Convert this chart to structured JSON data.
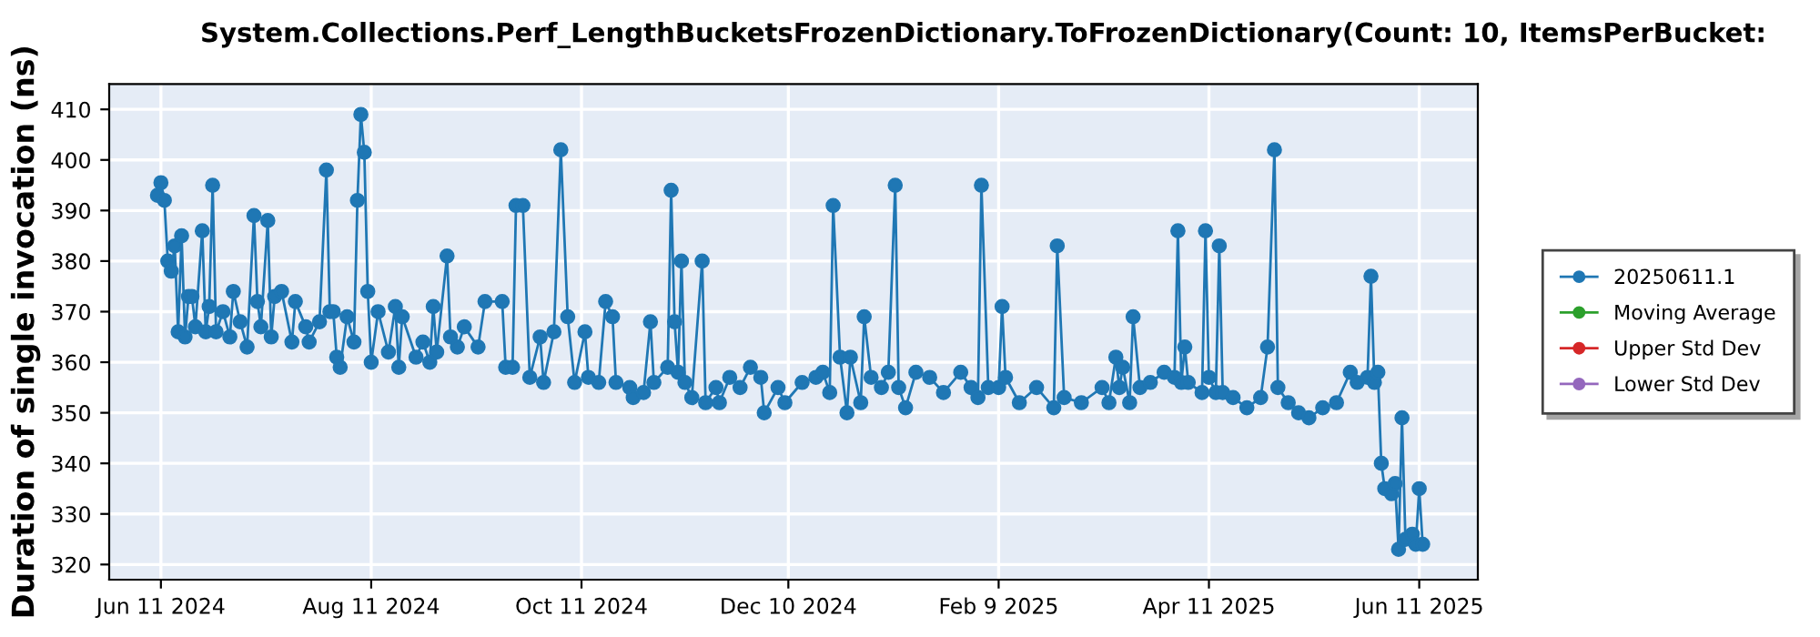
{
  "chart_data": {
    "type": "line",
    "title": "System.Collections.Perf_LengthBucketsFrozenDictionary.ToFrozenDictionary(Count: 10, ItemsPerBucket:",
    "ylabel": "Duration of single invocation (ns)",
    "xlim": [
      "2024-05-27",
      "2025-06-28"
    ],
    "ylim": [
      317,
      415
    ],
    "xticks": [
      {
        "value": "2024-06-11",
        "label": "Jun 11 2024"
      },
      {
        "value": "2024-08-11",
        "label": "Aug 11 2024"
      },
      {
        "value": "2024-10-11",
        "label": "Oct 11 2024"
      },
      {
        "value": "2024-12-10",
        "label": "Dec 10 2024"
      },
      {
        "value": "2025-02-09",
        "label": "Feb 9 2025"
      },
      {
        "value": "2025-04-11",
        "label": "Apr 11 2025"
      },
      {
        "value": "2025-06-11",
        "label": "Jun 11 2025"
      }
    ],
    "yticks": [
      320,
      330,
      340,
      350,
      360,
      370,
      380,
      390,
      400,
      410
    ],
    "grid": true,
    "legend": "right",
    "marker": "circle",
    "line_style": "solid",
    "series": [
      {
        "name": "20250611.1",
        "color": "#1f77b4",
        "x": [
          "2024-06-10",
          "2024-06-11",
          "2024-06-12",
          "2024-06-13",
          "2024-06-14",
          "2024-06-15",
          "2024-06-16",
          "2024-06-17",
          "2024-06-18",
          "2024-06-19",
          "2024-06-20",
          "2024-06-21",
          "2024-06-23",
          "2024-06-24",
          "2024-06-25",
          "2024-06-26",
          "2024-06-27",
          "2024-06-29",
          "2024-07-01",
          "2024-07-02",
          "2024-07-04",
          "2024-07-06",
          "2024-07-08",
          "2024-07-09",
          "2024-07-10",
          "2024-07-12",
          "2024-07-13",
          "2024-07-14",
          "2024-07-16",
          "2024-07-19",
          "2024-07-20",
          "2024-07-23",
          "2024-07-24",
          "2024-07-27",
          "2024-07-29",
          "2024-07-30",
          "2024-07-31",
          "2024-08-01",
          "2024-08-02",
          "2024-08-04",
          "2024-08-06",
          "2024-08-07",
          "2024-08-08",
          "2024-08-09",
          "2024-08-10",
          "2024-08-11",
          "2024-08-13",
          "2024-08-16",
          "2024-08-18",
          "2024-08-19",
          "2024-08-20",
          "2024-08-24",
          "2024-08-26",
          "2024-08-28",
          "2024-08-29",
          "2024-08-30",
          "2024-09-02",
          "2024-09-03",
          "2024-09-05",
          "2024-09-07",
          "2024-09-11",
          "2024-09-13",
          "2024-09-18",
          "2024-09-19",
          "2024-09-21",
          "2024-09-22",
          "2024-09-24",
          "2024-09-26",
          "2024-09-29",
          "2024-09-30",
          "2024-10-03",
          "2024-10-05",
          "2024-10-07",
          "2024-10-09",
          "2024-10-12",
          "2024-10-13",
          "2024-10-16",
          "2024-10-18",
          "2024-10-20",
          "2024-10-21",
          "2024-10-25",
          "2024-10-26",
          "2024-10-29",
          "2024-10-31",
          "2024-11-01",
          "2024-11-05",
          "2024-11-06",
          "2024-11-07",
          "2024-11-08",
          "2024-11-09",
          "2024-11-10",
          "2024-11-12",
          "2024-11-15",
          "2024-11-16",
          "2024-11-19",
          "2024-11-20",
          "2024-11-23",
          "2024-11-26",
          "2024-11-29",
          "2024-12-02",
          "2024-12-03",
          "2024-12-07",
          "2024-12-09",
          "2024-12-14",
          "2024-12-18",
          "2024-12-20",
          "2024-12-22",
          "2024-12-23",
          "2024-12-25",
          "2024-12-27",
          "2024-12-28",
          "2024-12-31",
          "2025-01-01",
          "2025-01-03",
          "2025-01-06",
          "2025-01-08",
          "2025-01-10",
          "2025-01-11",
          "2025-01-13",
          "2025-01-16",
          "2025-01-20",
          "2025-01-24",
          "2025-01-29",
          "2025-02-01",
          "2025-02-03",
          "2025-02-04",
          "2025-02-06",
          "2025-02-09",
          "2025-02-10",
          "2025-02-11",
          "2025-02-15",
          "2025-02-20",
          "2025-02-25",
          "2025-02-26",
          "2025-02-28",
          "2025-03-05",
          "2025-03-11",
          "2025-03-13",
          "2025-03-15",
          "2025-03-16",
          "2025-03-17",
          "2025-03-19",
          "2025-03-20",
          "2025-03-22",
          "2025-03-25",
          "2025-03-29",
          "2025-04-01",
          "2025-04-02",
          "2025-04-03",
          "2025-04-04",
          "2025-04-05",
          "2025-04-09",
          "2025-04-10",
          "2025-04-11",
          "2025-04-13",
          "2025-04-14",
          "2025-04-15",
          "2025-04-18",
          "2025-04-22",
          "2025-04-26",
          "2025-04-28",
          "2025-04-30",
          "2025-05-01",
          "2025-05-04",
          "2025-05-07",
          "2025-05-10",
          "2025-05-14",
          "2025-05-18",
          "2025-05-22",
          "2025-05-24",
          "2025-05-27",
          "2025-05-28",
          "2025-05-29",
          "2025-05-30",
          "2025-05-31",
          "2025-06-01",
          "2025-06-03",
          "2025-06-04",
          "2025-06-05",
          "2025-06-06",
          "2025-06-07",
          "2025-06-09",
          "2025-06-10",
          "2025-06-11",
          "2025-06-12"
        ],
        "values": [
          393,
          395.5,
          392,
          380,
          378,
          383,
          366,
          385,
          365,
          373,
          373,
          367,
          386,
          366,
          371,
          395,
          366,
          370,
          365,
          374,
          368,
          363,
          389,
          372,
          367,
          388,
          365,
          373,
          374,
          364,
          372,
          367,
          364,
          368,
          398,
          370,
          370,
          361,
          359,
          369,
          364,
          392,
          409,
          401.5,
          374,
          360,
          370,
          362,
          371,
          359,
          369,
          361,
          364,
          360,
          371,
          362,
          381,
          365,
          363,
          367,
          363,
          372,
          372,
          359,
          359,
          391,
          391,
          357,
          365,
          356,
          366,
          402,
          369,
          356,
          366,
          357,
          356,
          372,
          369,
          356,
          355,
          353,
          354,
          368,
          356,
          359,
          394,
          368,
          358,
          380,
          356,
          353,
          380,
          352,
          355,
          352,
          357,
          355,
          359,
          357,
          350,
          355,
          352,
          356,
          357,
          358,
          354,
          391,
          361,
          350,
          361,
          352,
          369,
          357,
          355,
          358,
          395,
          355,
          351,
          358,
          357,
          354,
          358,
          355,
          353,
          395,
          355,
          355,
          371,
          357,
          352,
          355,
          351,
          383,
          353,
          352,
          355,
          352,
          361,
          355,
          359,
          352,
          369,
          355,
          356,
          358,
          357,
          386,
          356,
          363,
          356,
          354,
          386,
          357,
          354,
          383,
          354,
          353,
          351,
          353,
          363,
          402,
          355,
          352,
          350,
          349,
          351,
          352,
          358,
          356,
          357,
          377,
          356,
          358,
          340,
          335,
          334,
          336,
          323,
          349,
          325,
          326,
          324,
          335,
          324
        ]
      },
      {
        "name": "Moving Average",
        "color": "#2ca02c"
      },
      {
        "name": "Upper Std Dev",
        "color": "#d62728"
      },
      {
        "name": "Lower Std Dev",
        "color": "#9467bd"
      }
    ]
  }
}
